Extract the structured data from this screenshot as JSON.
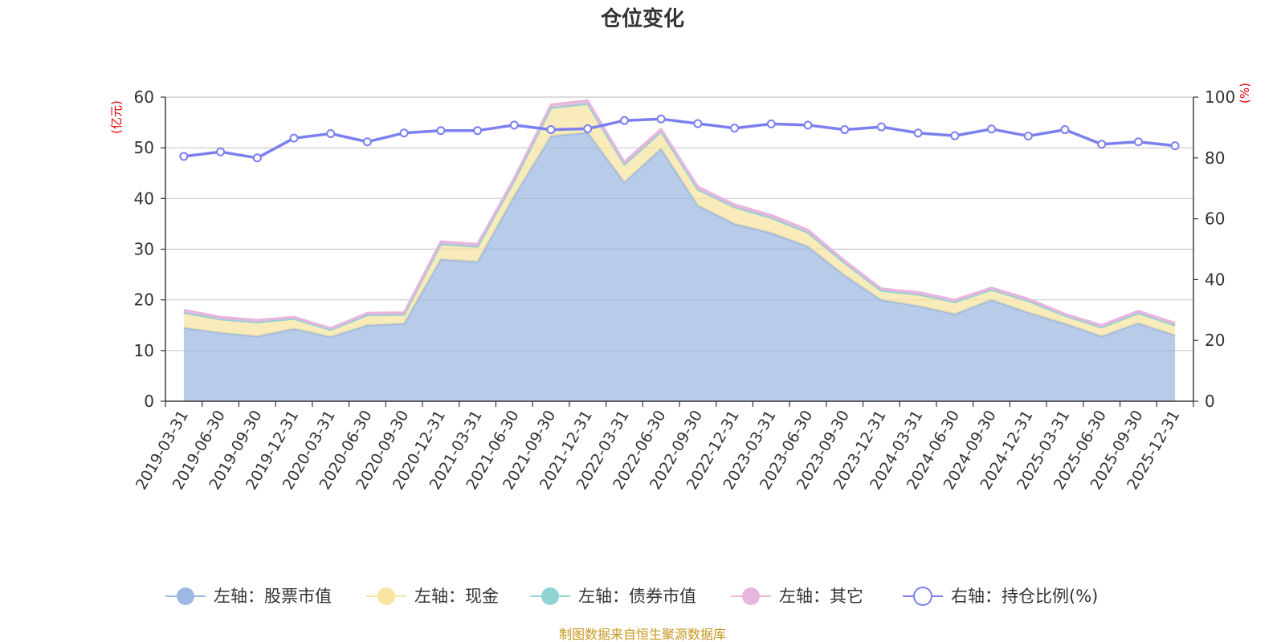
{
  "chart_data": {
    "type": "area",
    "title": "仓位变化",
    "left_axis_unit": "(亿元)",
    "right_axis_unit": "(%)",
    "categories": [
      "2019-03-31",
      "2019-06-30",
      "2019-09-30",
      "2019-12-31",
      "2020-03-31",
      "2020-06-30",
      "2020-09-30",
      "2020-12-31",
      "2021-03-31",
      "2021-06-30",
      "2021-09-30",
      "2021-12-31",
      "2022-03-31",
      "2022-06-30",
      "2022-09-30",
      "2022-12-31",
      "2023-03-31",
      "2023-06-30",
      "2023-09-30",
      "2023-12-31",
      "2024-03-31",
      "2024-06-30",
      "2024-09-30",
      "2024-12-31",
      "2025-03-31",
      "2025-06-30",
      "2025-09-30",
      "2025-12-31"
    ],
    "left_ylim": [
      0,
      60
    ],
    "left_ticks": [
      0,
      10,
      20,
      30,
      40,
      50,
      60
    ],
    "right_ylim": [
      0,
      100
    ],
    "right_ticks": [
      0,
      20,
      40,
      60,
      80,
      100
    ],
    "stacked": true,
    "series": [
      {
        "name": "左轴：股票市值",
        "axis": "left",
        "color": "#9db8e2",
        "values": [
          14.5,
          13.5,
          12.8,
          14.3,
          12.7,
          15.0,
          15.3,
          28.0,
          27.5,
          40.5,
          52.3,
          53.0,
          43.2,
          49.8,
          38.6,
          35.0,
          33.2,
          30.5,
          24.8,
          20.0,
          18.8,
          17.2,
          20.0,
          17.5,
          15.3,
          12.8,
          15.4,
          13.0
        ]
      },
      {
        "name": "左轴：现金",
        "axis": "left",
        "color": "#f7e4a0",
        "values": [
          3.0,
          2.7,
          2.8,
          2.0,
          1.4,
          2.0,
          1.8,
          3.0,
          3.0,
          3.0,
          5.6,
          5.7,
          3.5,
          3.4,
          3.2,
          3.3,
          3.0,
          2.8,
          2.5,
          1.8,
          2.3,
          2.4,
          2.0,
          2.3,
          1.6,
          1.8,
          2.0,
          2.0
        ]
      },
      {
        "name": "左轴：债券市值",
        "axis": "left",
        "color": "#8fd3d3",
        "values": [
          0,
          0,
          0,
          0,
          0,
          0,
          0,
          0,
          0,
          0,
          0,
          0,
          0,
          0,
          0,
          0,
          0,
          0,
          0,
          0,
          0,
          0,
          0,
          0,
          0,
          0,
          0,
          0
        ]
      },
      {
        "name": "左轴：其它",
        "axis": "left",
        "color": "#e8b5dd",
        "values": [
          0.5,
          0.4,
          0.4,
          0.3,
          0.3,
          0.4,
          0.4,
          0.5,
          0.5,
          0.5,
          0.6,
          0.6,
          0.5,
          0.5,
          0.5,
          0.5,
          0.5,
          0.5,
          0.4,
          0.4,
          0.4,
          0.4,
          0.4,
          0.4,
          0.3,
          0.4,
          0.4,
          0.4
        ]
      },
      {
        "name": "右轴：持仓比例(%)",
        "axis": "right",
        "color": "#7b7ff0",
        "type": "line",
        "values": [
          80.5,
          82.0,
          80.0,
          86.5,
          88.0,
          85.3,
          88.2,
          89.0,
          89.0,
          90.8,
          89.3,
          89.6,
          92.3,
          92.8,
          91.3,
          89.8,
          91.2,
          90.8,
          89.3,
          90.2,
          88.2,
          87.3,
          89.5,
          87.2,
          89.3,
          84.5,
          85.3,
          84.0
        ]
      }
    ],
    "legend_position": "bottom-center",
    "grid": true
  },
  "source_note": "制图数据来自恒生聚源数据库"
}
